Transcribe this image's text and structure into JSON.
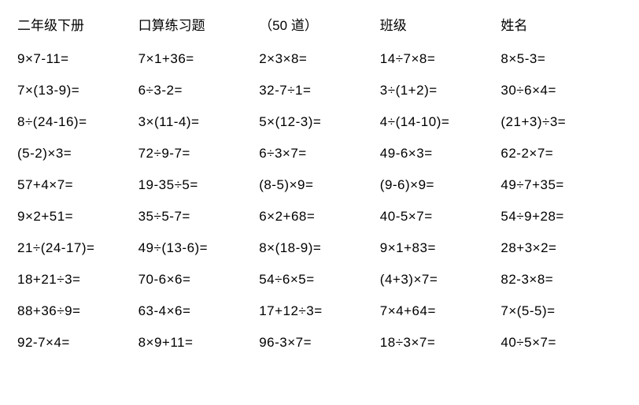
{
  "header": {
    "col1": "二年级下册",
    "col2": "口算练习题",
    "col3": "（50 道）",
    "col4": "班级",
    "col5": "姓名"
  },
  "rows": [
    [
      "9×7-11=",
      "7×1+36=",
      "2×3×8=",
      "14÷7×8=",
      "8×5-3="
    ],
    [
      "7×(13-9)=",
      "6÷3-2=",
      "32-7÷1=",
      "3÷(1+2)=",
      "30÷6×4="
    ],
    [
      "8÷(24-16)=",
      "3×(11-4)=",
      "5×(12-3)=",
      "4÷(14-10)=",
      "(21+3)÷3="
    ],
    [
      "(5-2)×3=",
      "72÷9-7=",
      "6÷3×7=",
      "49-6×3=",
      "62-2×7="
    ],
    [
      "57+4×7=",
      "19-35÷5=",
      "(8-5)×9=",
      "(9-6)×9=",
      "49÷7+35="
    ],
    [
      "9×2+51=",
      "35÷5-7=",
      "6×2+68=",
      "40-5×7=",
      "54÷9+28="
    ],
    [
      "21÷(24-17)=",
      "49÷(13-6)=",
      "8×(18-9)=",
      "9×1+83=",
      "28+3×2="
    ],
    [
      "18+21÷3=",
      "70-6×6=",
      "54÷6×5=",
      "(4+3)×7=",
      "82-3×8="
    ],
    [
      "88+36÷9=",
      "63-4×6=",
      "17+12÷3=",
      "7×4+64=",
      "7×(5-5)="
    ],
    [
      "92-7×4=",
      "8×9+11=",
      "96-3×7=",
      "18÷3×7=",
      "40÷5×7="
    ]
  ],
  "style": {
    "background_color": "#ffffff",
    "text_color": "#000000",
    "font_size": 17,
    "columns": 5,
    "rows": 10
  }
}
